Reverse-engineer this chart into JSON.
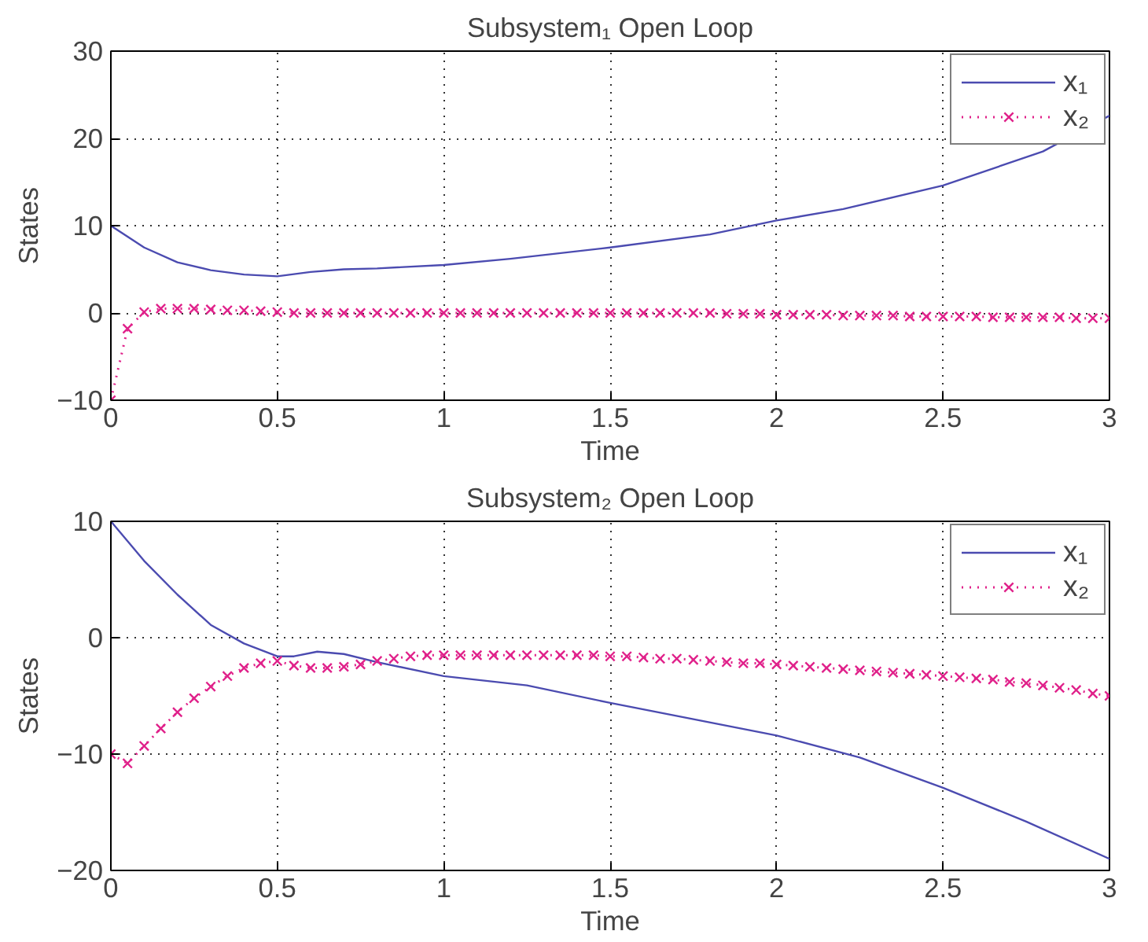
{
  "chart_data": [
    {
      "type": "line",
      "title": "Subsystem₁ Open Loop",
      "xlabel": "Time",
      "ylabel": "States",
      "xlim": [
        0,
        3
      ],
      "ylim": [
        -10,
        30
      ],
      "xticks": [
        0,
        0.5,
        1,
        1.5,
        2,
        2.5,
        3
      ],
      "yticks": [
        -10,
        0,
        10,
        20,
        30
      ],
      "grid": true,
      "legend": "top right",
      "series": [
        {
          "name": "x₁",
          "color": "#4b4bb0",
          "marker": "none",
          "line_style": "solid",
          "x": [
            0,
            0.1,
            0.2,
            0.3,
            0.4,
            0.5,
            0.6,
            0.7,
            0.8,
            1.0,
            1.2,
            1.5,
            1.8,
            2.0,
            2.2,
            2.5,
            2.8,
            3.0
          ],
          "values": [
            10,
            7.5,
            5.8,
            4.9,
            4.4,
            4.2,
            4.7,
            5,
            5.1,
            5.5,
            6.2,
            7.5,
            9,
            10.6,
            11.9,
            14.6,
            18.5,
            22.6
          ]
        },
        {
          "name": "x₂",
          "color": "#e0218a",
          "marker": "cross",
          "line_style": "dotted",
          "x": [
            0,
            0.05,
            0.1,
            0.15,
            0.2,
            0.25,
            0.3,
            0.35,
            0.4,
            0.45,
            0.5,
            0.55,
            0.6,
            0.65,
            0.7,
            0.75,
            0.8,
            0.85,
            0.9,
            0.95,
            1.0,
            1.05,
            1.1,
            1.15,
            1.2,
            1.25,
            1.3,
            1.35,
            1.4,
            1.45,
            1.5,
            1.55,
            1.6,
            1.65,
            1.7,
            1.75,
            1.8,
            1.85,
            1.9,
            1.95,
            2.0,
            2.05,
            2.1,
            2.15,
            2.2,
            2.25,
            2.3,
            2.35,
            2.4,
            2.45,
            2.5,
            2.55,
            2.6,
            2.65,
            2.7,
            2.75,
            2.8,
            2.85,
            2.9,
            2.95,
            3.0
          ],
          "values": [
            -10,
            -1.8,
            0.1,
            0.5,
            0.5,
            0.5,
            0.4,
            0.3,
            0.3,
            0.2,
            0.1,
            0,
            0,
            0,
            0,
            0,
            0,
            0,
            0,
            0,
            0,
            0,
            0,
            0,
            0,
            0,
            0,
            0,
            0,
            0,
            0,
            0,
            0,
            0,
            0,
            0,
            0,
            -0.1,
            -0.1,
            -0.1,
            -0.2,
            -0.2,
            -0.2,
            -0.2,
            -0.3,
            -0.3,
            -0.3,
            -0.3,
            -0.4,
            -0.4,
            -0.4,
            -0.4,
            -0.4,
            -0.5,
            -0.5,
            -0.5,
            -0.5,
            -0.5,
            -0.6,
            -0.6,
            -0.6
          ]
        }
      ]
    },
    {
      "type": "line",
      "title": "Subsystem₂ Open Loop",
      "xlabel": "Time",
      "ylabel": "States",
      "xlim": [
        0,
        3
      ],
      "ylim": [
        -20,
        10
      ],
      "xticks": [
        0,
        0.5,
        1,
        1.5,
        2,
        2.5,
        3
      ],
      "yticks": [
        -20,
        -10,
        0,
        10
      ],
      "grid": true,
      "legend": "top right",
      "series": [
        {
          "name": "x₁",
          "color": "#4b4bb0",
          "marker": "none",
          "line_style": "solid",
          "x": [
            0,
            0.1,
            0.2,
            0.3,
            0.4,
            0.5,
            0.55,
            0.62,
            0.7,
            0.8,
            1.0,
            1.25,
            1.5,
            1.75,
            2.0,
            2.25,
            2.5,
            2.75,
            3.0
          ],
          "values": [
            10,
            6.6,
            3.7,
            1.1,
            -0.5,
            -1.6,
            -1.6,
            -1.2,
            -1.4,
            -2.1,
            -3.3,
            -4.1,
            -5.6,
            -7,
            -8.4,
            -10.3,
            -12.9,
            -15.8,
            -19
          ]
        },
        {
          "name": "x₂",
          "color": "#e0218a",
          "marker": "cross",
          "line_style": "dotted",
          "x": [
            0,
            0.05,
            0.1,
            0.15,
            0.2,
            0.25,
            0.3,
            0.35,
            0.4,
            0.45,
            0.5,
            0.55,
            0.6,
            0.65,
            0.7,
            0.75,
            0.8,
            0.85,
            0.9,
            0.95,
            1.0,
            1.05,
            1.1,
            1.15,
            1.2,
            1.25,
            1.3,
            1.35,
            1.4,
            1.45,
            1.5,
            1.55,
            1.6,
            1.65,
            1.7,
            1.75,
            1.8,
            1.85,
            1.9,
            1.95,
            2.0,
            2.05,
            2.1,
            2.15,
            2.2,
            2.25,
            2.3,
            2.35,
            2.4,
            2.45,
            2.5,
            2.55,
            2.6,
            2.65,
            2.7,
            2.75,
            2.8,
            2.85,
            2.9,
            2.95,
            3.0
          ],
          "values": [
            -10,
            -10.8,
            -9.3,
            -7.8,
            -6.4,
            -5.2,
            -4.2,
            -3.3,
            -2.6,
            -2.2,
            -2,
            -2.4,
            -2.6,
            -2.6,
            -2.5,
            -2.3,
            -2,
            -1.8,
            -1.6,
            -1.5,
            -1.5,
            -1.5,
            -1.5,
            -1.5,
            -1.5,
            -1.5,
            -1.5,
            -1.5,
            -1.5,
            -1.5,
            -1.6,
            -1.6,
            -1.7,
            -1.8,
            -1.8,
            -1.9,
            -2,
            -2.1,
            -2.2,
            -2.2,
            -2.3,
            -2.4,
            -2.5,
            -2.6,
            -2.7,
            -2.8,
            -2.9,
            -3,
            -3.1,
            -3.2,
            -3.3,
            -3.4,
            -3.5,
            -3.6,
            -3.8,
            -3.9,
            -4.1,
            -4.3,
            -4.5,
            -4.8,
            -5
          ]
        }
      ]
    }
  ]
}
